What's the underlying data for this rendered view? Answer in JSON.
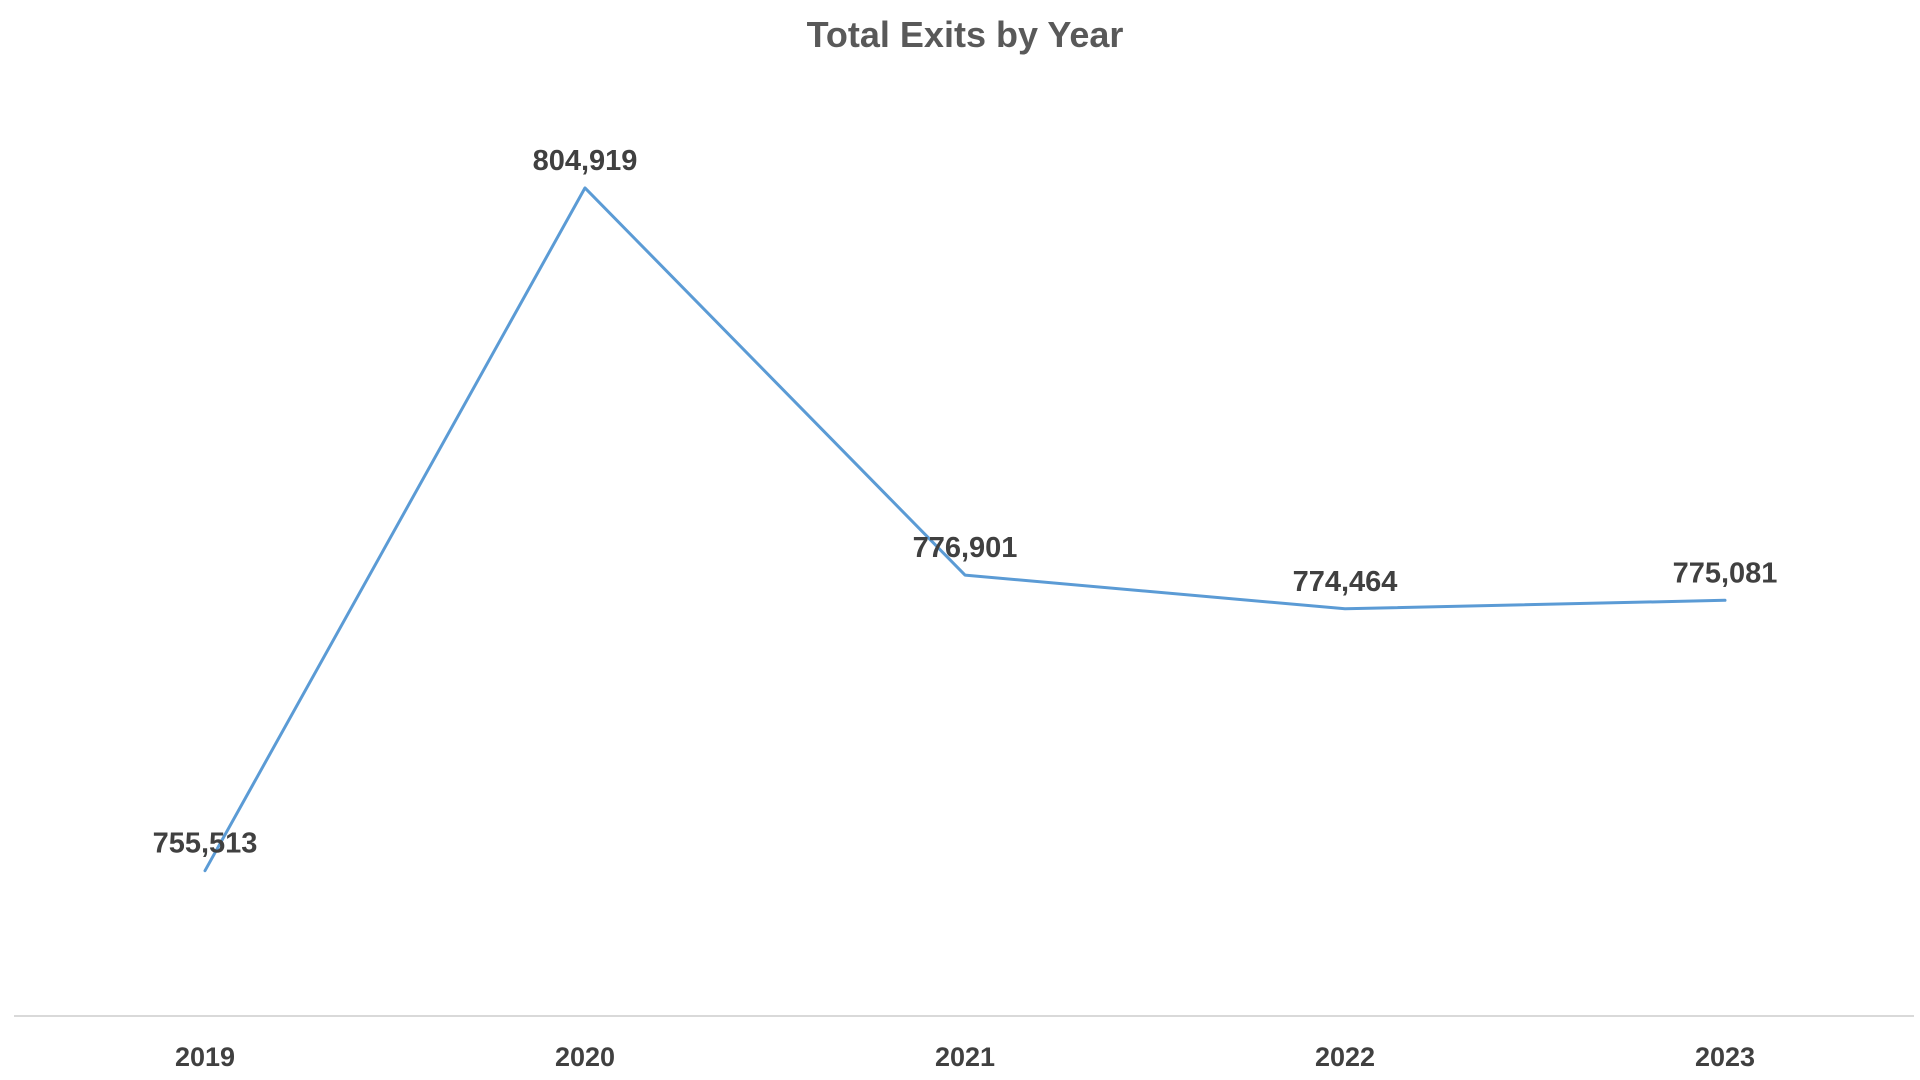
{
  "chart_data": {
    "type": "line",
    "title": "Total Exits by Year",
    "xlabel": "",
    "ylabel": "",
    "categories": [
      "2019",
      "2020",
      "2021",
      "2022",
      "2023"
    ],
    "series": [
      {
        "values": [
          755513,
          804919,
          776901,
          774464,
          775081
        ],
        "data_labels": [
          "755,513",
          "804,919",
          "776,901",
          "774,464",
          "775,081"
        ]
      }
    ],
    "ylim": [
      745000,
      812000
    ],
    "grid": false,
    "legend": "none",
    "colors": {
      "line": "#5b9bd5",
      "axis": "#d9d9d9",
      "title": "#595959",
      "labels": "#404040"
    }
  }
}
